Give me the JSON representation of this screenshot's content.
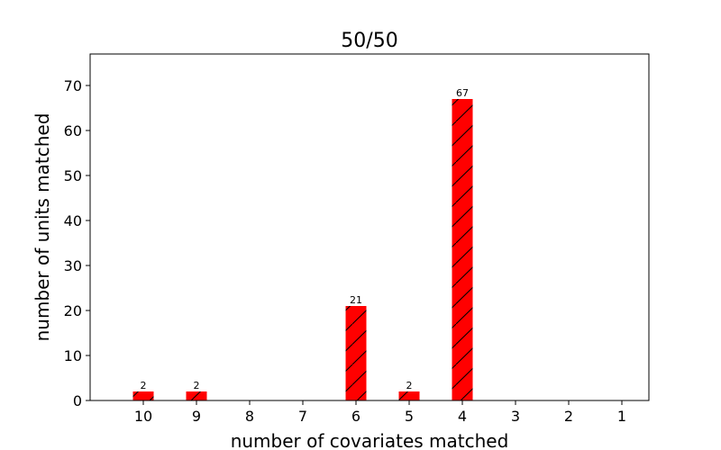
{
  "chart_data": {
    "type": "bar",
    "title": "50/50",
    "xlabel": "number of covariates matched",
    "ylabel": "number of units matched",
    "categories": [
      "10",
      "9",
      "8",
      "7",
      "6",
      "5",
      "4",
      "3",
      "2",
      "1"
    ],
    "values": [
      2,
      2,
      0,
      0,
      21,
      2,
      67,
      0,
      0,
      0
    ],
    "data_labels": [
      "2",
      "2",
      "",
      "",
      "21",
      "2",
      "67",
      "",
      "",
      ""
    ],
    "ylim": [
      0,
      77
    ],
    "yticks": [
      0,
      10,
      20,
      30,
      40,
      50,
      60,
      70
    ],
    "grid": false,
    "bar_color": "#ff0000",
    "hatch": "diagonal"
  }
}
